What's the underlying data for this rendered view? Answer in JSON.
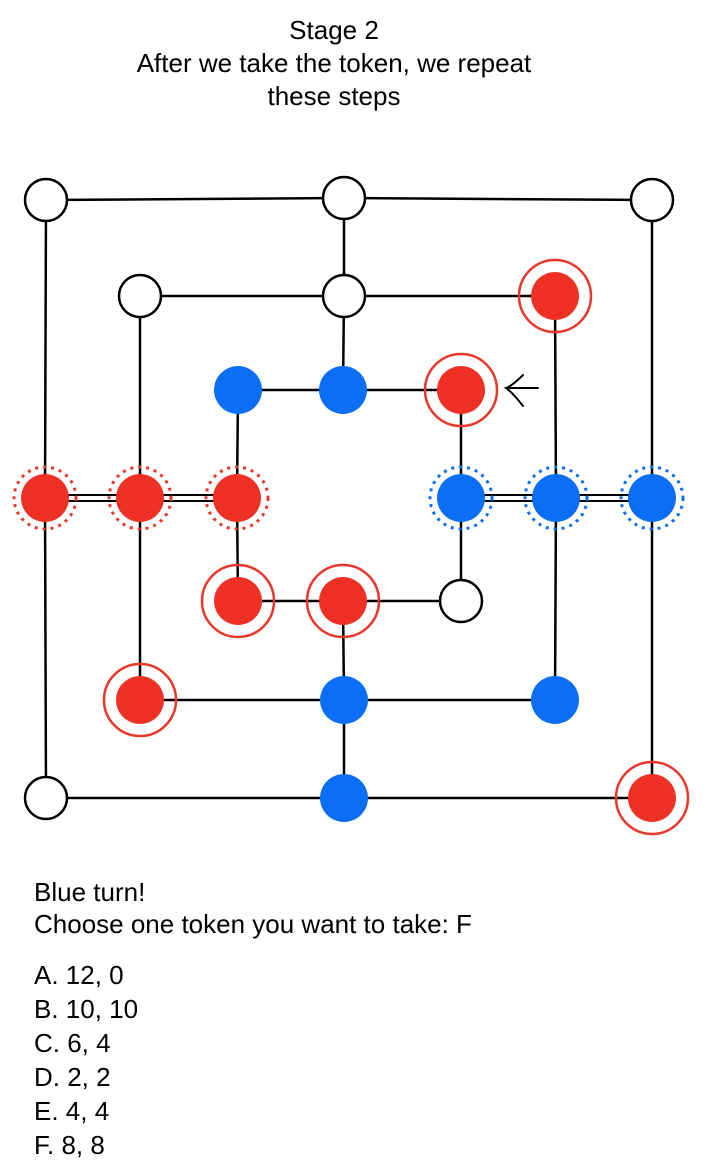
{
  "title": "Stage 2",
  "subtitle_line1": "After we take the token,  we repeat",
  "subtitle_line2": "these steps",
  "colors": {
    "red": "#ee3124",
    "blue": "#0b6ff5",
    "ring_red": "#e8382b",
    "ring_blue": "#0b6ff5",
    "line": "#000000",
    "empty_fill": "#ffffff"
  },
  "turn_text": "Blue turn!",
  "prompt_text": "Choose one token you want to take: F",
  "options": [
    "A. 12, 0",
    "B. 10, 10",
    "C. 6, 4",
    "D. 2, 2",
    "E. 4, 4",
    "F. 8, 8"
  ],
  "board": {
    "points": [
      {
        "id": "outer-top-left",
        "state": "empty",
        "mark": "none"
      },
      {
        "id": "outer-top-mid",
        "state": "empty",
        "mark": "none"
      },
      {
        "id": "outer-top-right",
        "state": "empty",
        "mark": "none"
      },
      {
        "id": "middle-top-left",
        "state": "empty",
        "mark": "none"
      },
      {
        "id": "middle-top-mid",
        "state": "empty",
        "mark": "none"
      },
      {
        "id": "middle-top-right",
        "state": "red",
        "mark": "solid-ring"
      },
      {
        "id": "inner-top-left",
        "state": "blue",
        "mark": "none"
      },
      {
        "id": "inner-top-mid",
        "state": "blue",
        "mark": "none"
      },
      {
        "id": "inner-top-right",
        "state": "red",
        "mark": "solid-ring"
      },
      {
        "id": "outer-mid-left",
        "state": "red",
        "mark": "dotted-ring"
      },
      {
        "id": "middle-mid-left",
        "state": "red",
        "mark": "dotted-ring"
      },
      {
        "id": "inner-mid-left",
        "state": "red",
        "mark": "dotted-ring"
      },
      {
        "id": "inner-mid-right",
        "state": "blue",
        "mark": "dotted-ring"
      },
      {
        "id": "middle-mid-right",
        "state": "blue",
        "mark": "dotted-ring"
      },
      {
        "id": "outer-mid-right",
        "state": "blue",
        "mark": "dotted-ring"
      },
      {
        "id": "inner-bottom-left",
        "state": "red",
        "mark": "solid-ring"
      },
      {
        "id": "inner-bottom-mid",
        "state": "red",
        "mark": "solid-ring"
      },
      {
        "id": "inner-bottom-right",
        "state": "empty",
        "mark": "none"
      },
      {
        "id": "middle-bottom-left",
        "state": "red",
        "mark": "solid-ring"
      },
      {
        "id": "middle-bottom-mid",
        "state": "blue",
        "mark": "none"
      },
      {
        "id": "middle-bottom-right",
        "state": "blue",
        "mark": "none"
      },
      {
        "id": "outer-bottom-left",
        "state": "empty",
        "mark": "none"
      },
      {
        "id": "outer-bottom-mid",
        "state": "blue",
        "mark": "none"
      },
      {
        "id": "outer-bottom-right",
        "state": "red",
        "mark": "solid-ring"
      }
    ],
    "arrow_target": "inner-top-right"
  }
}
